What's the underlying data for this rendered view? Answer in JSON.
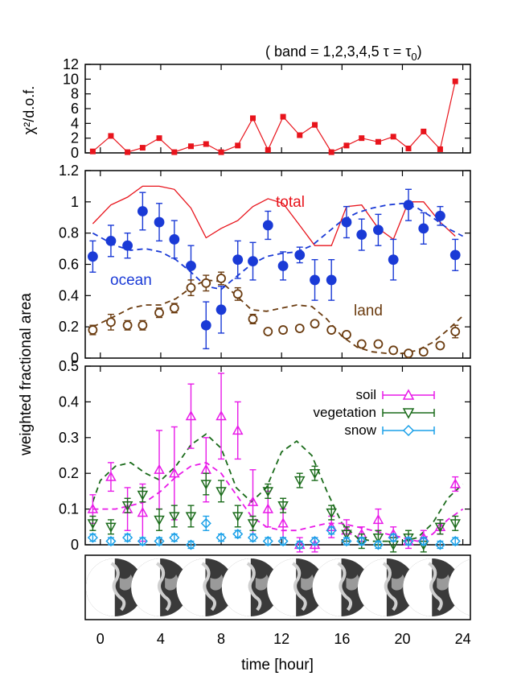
{
  "header_note": "( band = 1,2,3,4,5   τ = τ",
  "header_note_sub": "0",
  "header_note_close": ")",
  "shared_ylabel": "weighted fractional area",
  "colors": {
    "total": "#e8141c",
    "ocean": "#1a3ad6",
    "land": "#6b3c10",
    "soil": "#e81ae8",
    "vegetation": "#1a6b1a",
    "snow": "#1aa0e8",
    "chi2": "#e8141c",
    "axis": "#000000"
  },
  "chart_data": [
    {
      "id": "chi2",
      "type": "line",
      "ylabel": "χ²/d.o.f.",
      "ylim": [
        0,
        12
      ],
      "yticks": [
        0,
        2,
        4,
        6,
        8,
        10,
        12
      ],
      "xlim": [
        -1,
        24.5
      ],
      "series": [
        {
          "key": "chi2",
          "x": [
            -0.5,
            0.7,
            1.8,
            2.8,
            3.9,
            4.9,
            6.0,
            7.0,
            8.0,
            9.1,
            10.1,
            11.1,
            12.1,
            13.2,
            14.2,
            15.3,
            16.3,
            17.3,
            18.4,
            19.4,
            20.4,
            21.4,
            22.5,
            23.5
          ],
          "y": [
            0.2,
            2.3,
            0.1,
            0.7,
            2.0,
            0.1,
            0.9,
            1.2,
            0.1,
            1.0,
            4.7,
            0.4,
            4.9,
            2.4,
            3.8,
            0.1,
            1.0,
            2.0,
            1.5,
            2.2,
            0.6,
            2.9,
            0.5,
            9.7
          ]
        }
      ]
    },
    {
      "id": "components",
      "type": "line",
      "ylim": [
        0,
        1.2
      ],
      "yticks": [
        "0",
        "0.2",
        "0.4",
        "0.6",
        "0.8",
        "1",
        "1.2"
      ],
      "xlim": [
        -1,
        24.5
      ],
      "annotations": [
        "total",
        "ocean",
        "land"
      ],
      "series": [
        {
          "key": "total",
          "style": "solid",
          "x": [
            -0.5,
            0.7,
            1.8,
            2.8,
            3.9,
            4.9,
            6.0,
            7.0,
            8.0,
            9.1,
            10.1,
            11.1,
            12.1,
            13.2,
            14.2,
            15.3,
            16.3,
            17.3,
            18.4,
            19.4,
            20.4,
            21.4,
            22.5,
            23.5
          ],
          "y": [
            0.86,
            0.98,
            1.03,
            1.1,
            1.1,
            1.08,
            0.96,
            0.77,
            0.83,
            0.88,
            0.97,
            1.02,
            0.99,
            0.85,
            0.72,
            0.72,
            0.97,
            0.98,
            0.83,
            0.76,
            1.0,
            1.0,
            0.87,
            0.78
          ]
        },
        {
          "key": "ocean",
          "style": "points",
          "x": [
            -0.5,
            0.7,
            1.8,
            2.8,
            3.9,
            4.9,
            6.0,
            7.0,
            8.0,
            9.1,
            10.1,
            11.1,
            12.1,
            13.2,
            14.2,
            15.3,
            16.3,
            17.3,
            18.4,
            19.4,
            20.4,
            21.4,
            22.5,
            23.5
          ],
          "y": [
            0.65,
            0.75,
            0.72,
            0.94,
            0.87,
            0.76,
            0.59,
            0.21,
            0.31,
            0.63,
            0.62,
            0.85,
            0.59,
            0.66,
            0.5,
            0.5,
            0.87,
            0.79,
            0.82,
            0.63,
            0.98,
            0.83,
            0.91,
            0.66
          ],
          "err": [
            0.1,
            0.1,
            0.08,
            0.12,
            0.12,
            0.12,
            0.13,
            0.15,
            0.15,
            0.12,
            0.12,
            0.09,
            0.09,
            0.05,
            0.13,
            0.13,
            0.1,
            0.1,
            0.1,
            0.13,
            0.1,
            0.1,
            0.06,
            0.1
          ]
        },
        {
          "key": "ocean_fit",
          "style": "dashed",
          "x": [
            -0.5,
            1,
            2,
            3,
            4,
            5,
            6,
            7,
            8,
            9,
            10,
            11,
            12,
            13,
            14,
            15,
            16,
            17,
            18,
            19,
            20,
            21,
            22,
            23,
            24
          ],
          "y": [
            0.8,
            0.72,
            0.69,
            0.7,
            0.68,
            0.63,
            0.55,
            0.46,
            0.44,
            0.52,
            0.6,
            0.65,
            0.67,
            0.68,
            0.72,
            0.8,
            0.88,
            0.93,
            0.96,
            0.98,
            0.99,
            0.96,
            0.9,
            0.83,
            0.78
          ]
        },
        {
          "key": "land",
          "style": "points",
          "x": [
            -0.5,
            0.7,
            1.8,
            2.8,
            3.9,
            4.9,
            6.0,
            7.0,
            8.0,
            9.1,
            10.1,
            11.1,
            12.1,
            13.2,
            14.2,
            15.3,
            16.3,
            17.3,
            18.4,
            19.4,
            20.4,
            21.4,
            22.5,
            23.5
          ],
          "y": [
            0.18,
            0.23,
            0.21,
            0.21,
            0.29,
            0.32,
            0.45,
            0.48,
            0.51,
            0.41,
            0.25,
            0.17,
            0.18,
            0.19,
            0.22,
            0.18,
            0.15,
            0.09,
            0.09,
            0.05,
            0.03,
            0.04,
            0.08,
            0.17
          ],
          "err": [
            0.03,
            0.05,
            0.03,
            0.03,
            0.03,
            0.03,
            0.05,
            0.05,
            0.04,
            0.04,
            0.03,
            0.02,
            0.02,
            0.02,
            0.02,
            0.02,
            0.02,
            0.02,
            0.02,
            0.02,
            0.02,
            0.02,
            0.02,
            0.04
          ]
        },
        {
          "key": "land_fit",
          "style": "dashed",
          "x": [
            -0.5,
            1,
            2,
            3,
            4,
            5,
            6,
            7,
            8,
            9,
            10,
            11,
            12,
            13,
            14,
            15,
            16,
            17,
            18,
            19,
            20,
            21,
            22,
            23,
            24
          ],
          "y": [
            0.2,
            0.27,
            0.32,
            0.34,
            0.34,
            0.38,
            0.45,
            0.5,
            0.49,
            0.4,
            0.31,
            0.3,
            0.32,
            0.34,
            0.33,
            0.25,
            0.14,
            0.07,
            0.04,
            0.03,
            0.03,
            0.05,
            0.1,
            0.18,
            0.27
          ]
        }
      ]
    },
    {
      "id": "surfaces",
      "type": "line",
      "xlabel": "time [hour]",
      "ylim": [
        0,
        0.5
      ],
      "yticks": [
        "0",
        "0.1",
        "0.2",
        "0.3",
        "0.4",
        "0.5"
      ],
      "xlim": [
        -1,
        24.5
      ],
      "xticks": [
        0,
        4,
        8,
        12,
        16,
        20,
        24
      ],
      "legend": {
        "placement": "top-right",
        "entries": [
          "soil",
          "vegetation",
          "snow"
        ]
      },
      "series": [
        {
          "key": "soil",
          "style": "points",
          "x": [
            -0.5,
            0.7,
            1.8,
            2.8,
            3.9,
            4.9,
            6.0,
            7.0,
            8.0,
            9.1,
            10.1,
            11.1,
            12.1,
            13.2,
            14.2,
            15.3,
            16.3,
            17.3,
            18.4,
            19.4,
            20.4,
            21.4,
            22.5,
            23.5
          ],
          "y": [
            0.1,
            0.19,
            0.1,
            0.09,
            0.21,
            0.2,
            0.36,
            0.21,
            0.36,
            0.32,
            0.12,
            0.1,
            0.06,
            0.0,
            0.0,
            0.05,
            0.04,
            0.03,
            0.07,
            0.03,
            0.01,
            0.02,
            0.05,
            0.17
          ],
          "err": [
            0.04,
            0.04,
            0.06,
            0.08,
            0.11,
            0.13,
            0.09,
            0.09,
            0.12,
            0.08,
            0.09,
            0.05,
            0.04,
            0.02,
            0.02,
            0.03,
            0.03,
            0.02,
            0.03,
            0.02,
            0.02,
            0.02,
            0.02,
            0.02
          ]
        },
        {
          "key": "soil_fit",
          "style": "dashed",
          "x": [
            -0.5,
            1,
            2,
            3,
            4,
            5,
            6,
            7,
            8,
            9,
            10,
            11,
            12,
            13,
            14,
            15,
            16,
            17,
            18,
            19,
            20,
            21,
            22,
            23,
            24
          ],
          "y": [
            0.1,
            0.1,
            0.11,
            0.12,
            0.15,
            0.19,
            0.22,
            0.23,
            0.2,
            0.14,
            0.08,
            0.05,
            0.04,
            0.04,
            0.05,
            0.06,
            0.06,
            0.05,
            0.04,
            0.03,
            0.02,
            0.01,
            0.03,
            0.07,
            0.1
          ]
        },
        {
          "key": "vegetation",
          "style": "points",
          "x": [
            -0.5,
            0.7,
            1.8,
            2.8,
            3.9,
            4.9,
            6.0,
            7.0,
            8.0,
            9.1,
            10.1,
            11.1,
            12.1,
            13.2,
            14.2,
            15.3,
            16.3,
            17.3,
            18.4,
            19.4,
            20.4,
            21.4,
            22.5,
            23.5
          ],
          "y": [
            0.06,
            0.05,
            0.11,
            0.14,
            0.07,
            0.08,
            0.08,
            0.17,
            0.15,
            0.08,
            0.06,
            0.15,
            0.11,
            0.18,
            0.2,
            0.09,
            0.03,
            0.01,
            0.02,
            0.0,
            0.02,
            0.0,
            0.05,
            0.06
          ],
          "err": [
            0.02,
            0.02,
            0.02,
            0.02,
            0.03,
            0.03,
            0.03,
            0.03,
            0.03,
            0.03,
            0.02,
            0.02,
            0.02,
            0.02,
            0.02,
            0.02,
            0.02,
            0.02,
            0.02,
            0.02,
            0.02,
            0.02,
            0.02,
            0.02
          ]
        },
        {
          "key": "vegetation_fit",
          "style": "dashed",
          "x": [
            -0.5,
            0,
            1,
            2,
            3,
            4,
            5,
            6,
            7,
            8,
            9,
            10,
            11,
            12,
            13,
            14,
            15,
            16,
            17,
            18,
            19,
            20,
            21,
            22,
            23,
            24
          ],
          "y": [
            0.12,
            0.18,
            0.22,
            0.23,
            0.2,
            0.18,
            0.22,
            0.28,
            0.31,
            0.27,
            0.16,
            0.12,
            0.16,
            0.26,
            0.29,
            0.25,
            0.15,
            0.06,
            0.02,
            0.01,
            0.01,
            0.01,
            0.02,
            0.06,
            0.13,
            0.17
          ]
        },
        {
          "key": "snow",
          "style": "points",
          "x": [
            -0.5,
            0.7,
            1.8,
            2.8,
            3.9,
            4.9,
            6.0,
            7.0,
            8.0,
            9.1,
            10.1,
            11.1,
            12.1,
            13.2,
            14.2,
            15.3,
            16.3,
            17.3,
            18.4,
            19.4,
            20.4,
            21.4,
            22.5,
            23.5
          ],
          "y": [
            0.02,
            0.01,
            0.02,
            0.01,
            0.01,
            0.02,
            0.0,
            0.06,
            0.02,
            0.03,
            0.02,
            0.01,
            0.01,
            0.0,
            0.01,
            0.04,
            0.01,
            0.01,
            0.0,
            0.02,
            0.01,
            0.01,
            0.0,
            0.01
          ],
          "err": [
            0.01,
            0.01,
            0.01,
            0.01,
            0.01,
            0.01,
            0.01,
            0.02,
            0.01,
            0.01,
            0.01,
            0.01,
            0.01,
            0.01,
            0.01,
            0.01,
            0.01,
            0.01,
            0.01,
            0.01,
            0.01,
            0.01,
            0.01,
            0.01
          ]
        }
      ]
    }
  ],
  "globe_strip": {
    "hours": [
      0,
      3,
      6,
      9,
      12,
      15,
      18,
      21,
      24
    ]
  }
}
